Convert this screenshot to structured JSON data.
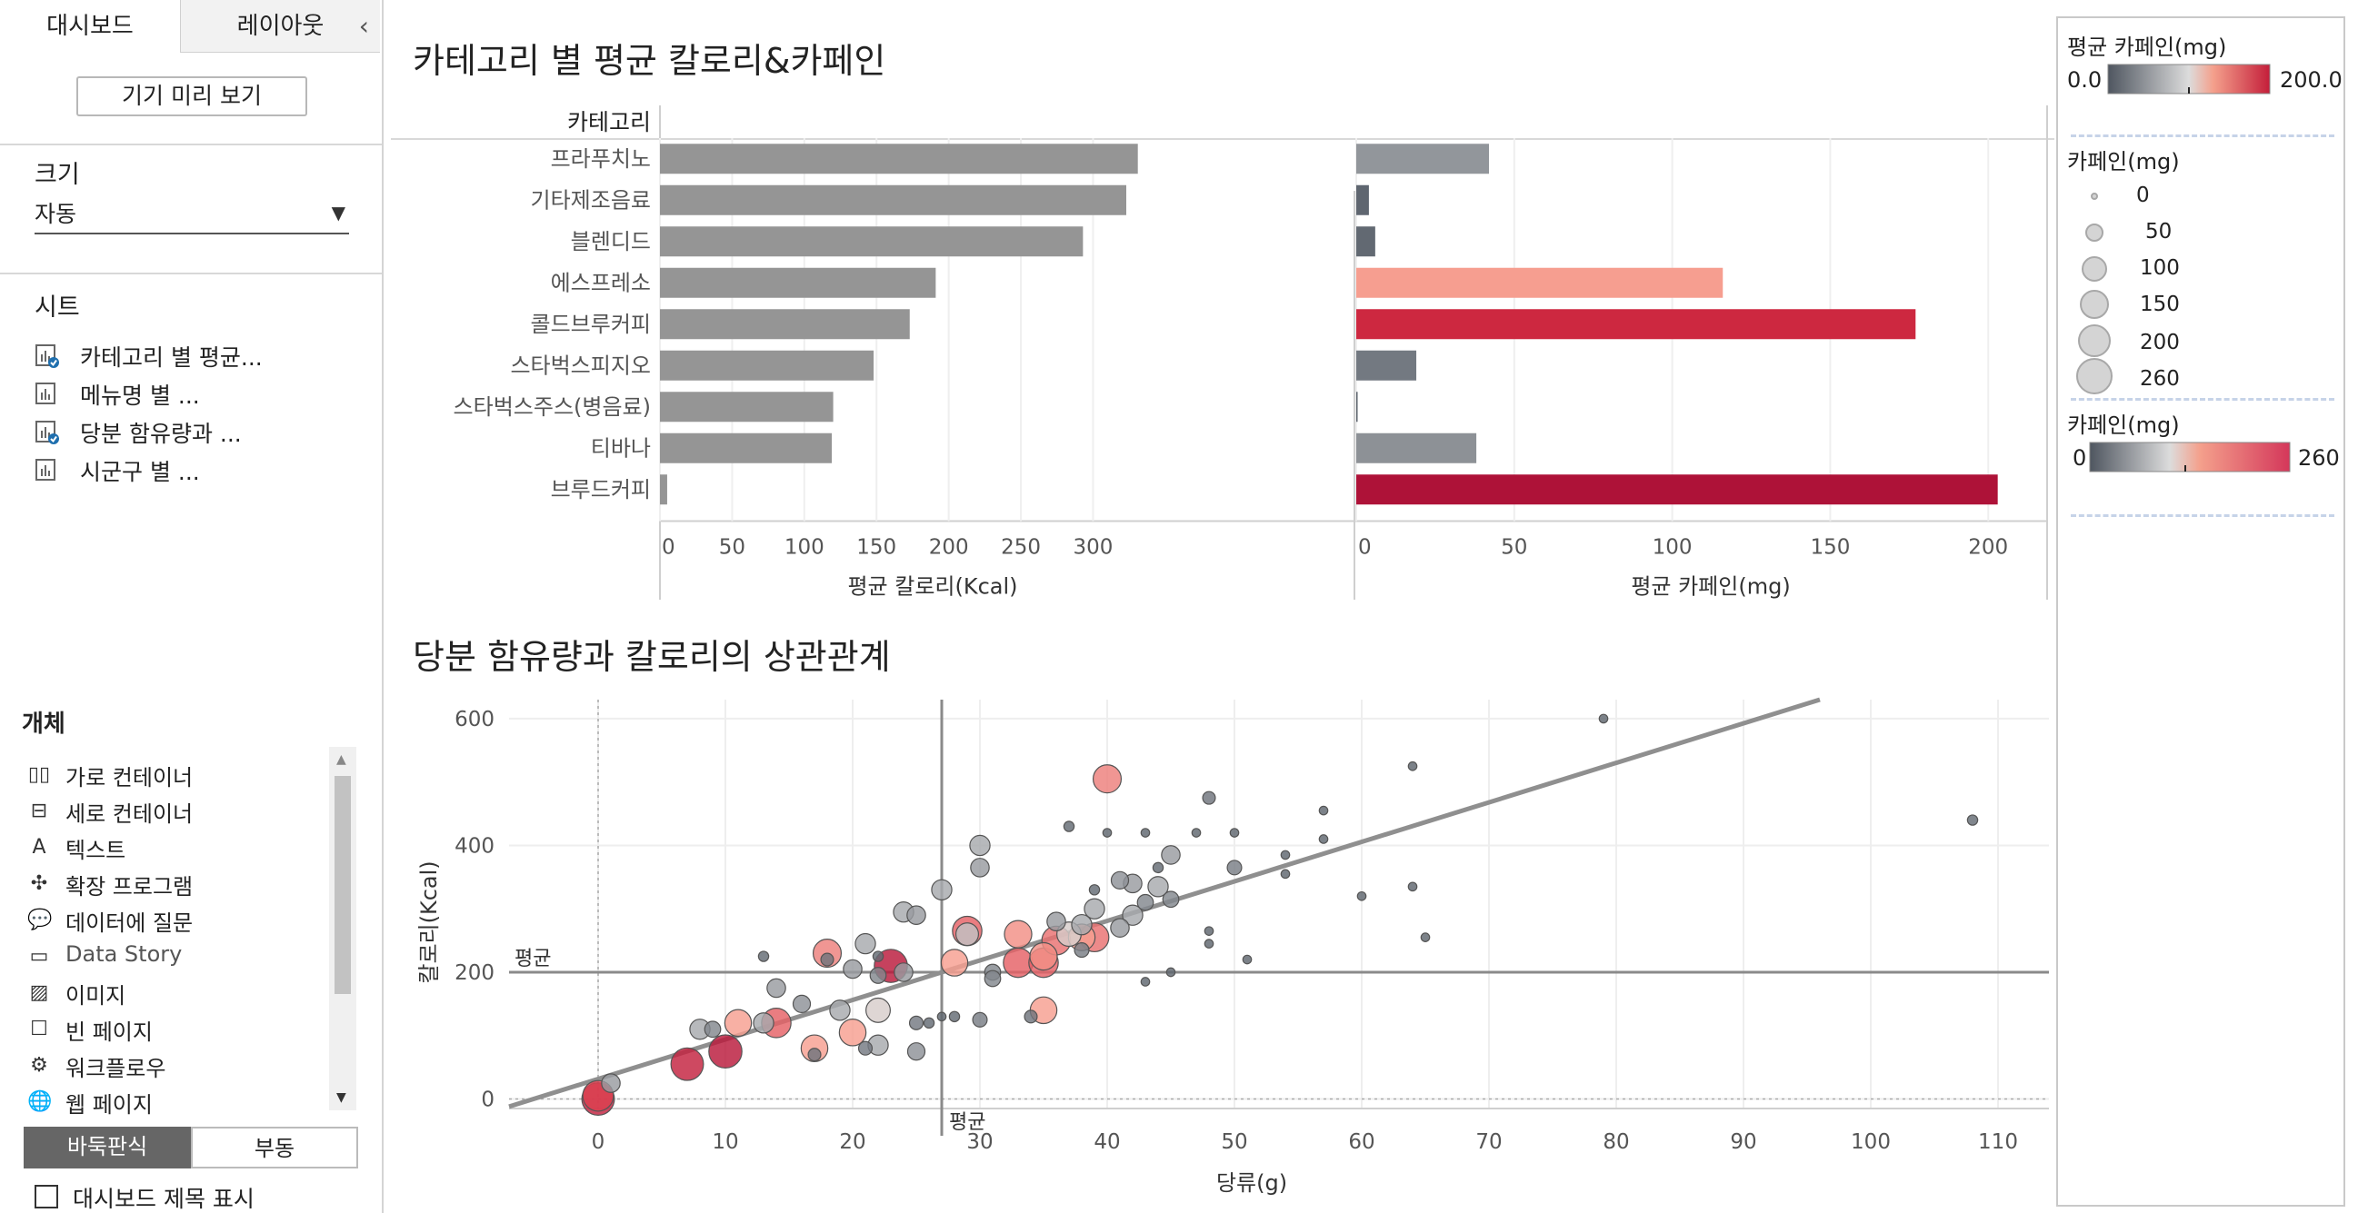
{
  "left_panel": {
    "tabs": [
      "대시보드",
      "레이아웃"
    ],
    "preview_button": "기기 미리 보기",
    "size_section": {
      "title": "크기",
      "value": "자동"
    },
    "sheets_section": {
      "title": "시트",
      "items": [
        {
          "label": "카테고리 별 평균...",
          "used": true
        },
        {
          "label": "메뉴명 별 ...",
          "used": false
        },
        {
          "label": "당분 함유량과 ...",
          "used": true
        },
        {
          "label": "시군구 별 ...",
          "used": false
        }
      ]
    },
    "objects_section": {
      "title": "개체",
      "items": [
        {
          "label": "가로 컨테이너",
          "icon": "horizontal-container-icon"
        },
        {
          "label": "세로 컨테이너",
          "icon": "vertical-container-icon"
        },
        {
          "label": "텍스트",
          "icon": "text-icon"
        },
        {
          "label": "확장 프로그램",
          "icon": "extension-icon"
        },
        {
          "label": "데이터에 질문",
          "icon": "ask-data-icon"
        },
        {
          "label": "Data Story",
          "icon": "data-story-icon"
        },
        {
          "label": "이미지",
          "icon": "image-icon"
        },
        {
          "label": "빈 페이지",
          "icon": "blank-icon"
        },
        {
          "label": "워크플로우",
          "icon": "workflow-icon"
        },
        {
          "label": "웹 페이지",
          "icon": "web-page-icon"
        }
      ]
    },
    "layout_toggle": [
      "바둑판식",
      "부동"
    ],
    "show_title_label": "대시보드 제목 표시"
  },
  "colors": {
    "bar_gray": "#959595",
    "caffeine_low": "#5f6670",
    "caffeine_mid": "#f7a898",
    "caffeine_high": "#b0143c",
    "trend": "#8f8f8f"
  },
  "chart1": {
    "title": "카테고리 별 평균 칼로리&카페인",
    "row_header": "카테고리",
    "categories": [
      "프라푸치노",
      "기타제조음료",
      "블렌디드",
      "에스프레소",
      "콜드브루커피",
      "스타벅스피지오",
      "스타벅스주스(병음료)",
      "티바나",
      "브루드커피"
    ]
  },
  "chart_data": [
    {
      "type": "bar",
      "orientation": "horizontal",
      "categories": [
        "프라푸치노",
        "기타제조음료",
        "블렌디드",
        "에스프레소",
        "콜드브루커피",
        "스타벅스피지오",
        "스타벅스주스(병음료)",
        "티바나",
        "브루드커피"
      ],
      "values": [
        331,
        323,
        293,
        191,
        173,
        148,
        120,
        119,
        5
      ],
      "xlabel": "평균 칼로리(Kcal)",
      "xlim": [
        0,
        340
      ],
      "xticks": [
        0,
        50,
        100,
        150,
        200,
        250,
        300
      ]
    },
    {
      "type": "bar",
      "orientation": "horizontal",
      "categories": [
        "프라푸치노",
        "기타제조음료",
        "블렌디드",
        "에스프레소",
        "콜드브루커피",
        "스타벅스피지오",
        "스타벅스주스(병음료)",
        "티바나",
        "브루드커피"
      ],
      "values": [
        42,
        4,
        6,
        116,
        177,
        19,
        0,
        38,
        203
      ],
      "xlabel": "평균 카페인(mg)",
      "xlim": [
        0,
        210
      ],
      "xticks": [
        0,
        50,
        100,
        150,
        200
      ],
      "color_scale": [
        0,
        200
      ]
    },
    {
      "type": "scatter",
      "title": "당분 함유량과 칼로리의 상관관계",
      "xlabel": "당류(g)",
      "ylabel": "칼로리(Kcal)",
      "xlim": [
        -7,
        114
      ],
      "ylim": [
        -15,
        630
      ],
      "xticks": [
        0,
        10,
        20,
        30,
        40,
        50,
        60,
        70,
        80,
        90,
        100,
        110
      ],
      "yticks": [
        0,
        200,
        400,
        600
      ],
      "avg_label": "평균",
      "avg_x": 27,
      "avg_y": 200,
      "trend": {
        "x0": -7,
        "y0": -12,
        "x1": 96,
        "y1": 630
      },
      "points": [
        {
          "x": 0,
          "y": 0,
          "c": 240
        },
        {
          "x": 0,
          "y": 5,
          "c": 210
        },
        {
          "x": 1,
          "y": 25,
          "c": 60
        },
        {
          "x": 7,
          "y": 55,
          "c": 240
        },
        {
          "x": 8,
          "y": 110,
          "c": 75
        },
        {
          "x": 9,
          "y": 110,
          "c": 40
        },
        {
          "x": 10,
          "y": 75,
          "c": 250
        },
        {
          "x": 11,
          "y": 120,
          "c": 150
        },
        {
          "x": 13,
          "y": 120,
          "c": 75
        },
        {
          "x": 14,
          "y": 175,
          "c": 60
        },
        {
          "x": 13,
          "y": 225,
          "c": 10
        },
        {
          "x": 14,
          "y": 120,
          "c": 190
        },
        {
          "x": 16,
          "y": 150,
          "c": 50
        },
        {
          "x": 17,
          "y": 80,
          "c": 150
        },
        {
          "x": 17,
          "y": 70,
          "c": 20
        },
        {
          "x": 18,
          "y": 230,
          "c": 170
        },
        {
          "x": 18,
          "y": 220,
          "c": 20
        },
        {
          "x": 19,
          "y": 140,
          "c": 75
        },
        {
          "x": 20,
          "y": 105,
          "c": 150
        },
        {
          "x": 20,
          "y": 205,
          "c": 60
        },
        {
          "x": 21,
          "y": 80,
          "c": 25
        },
        {
          "x": 21,
          "y": 245,
          "c": 75
        },
        {
          "x": 22,
          "y": 195,
          "c": 40
        },
        {
          "x": 22,
          "y": 140,
          "c": 120
        },
        {
          "x": 22,
          "y": 85,
          "c": 75
        },
        {
          "x": 22,
          "y": 225,
          "c": 10
        },
        {
          "x": 23,
          "y": 210,
          "c": 250
        },
        {
          "x": 24,
          "y": 200,
          "c": 60
        },
        {
          "x": 24,
          "y": 295,
          "c": 75
        },
        {
          "x": 25,
          "y": 290,
          "c": 60
        },
        {
          "x": 25,
          "y": 120,
          "c": 25
        },
        {
          "x": 25,
          "y": 75,
          "c": 50
        },
        {
          "x": 26,
          "y": 120,
          "c": 10
        },
        {
          "x": 27,
          "y": 330,
          "c": 75
        },
        {
          "x": 27,
          "y": 130,
          "c": 5
        },
        {
          "x": 28,
          "y": 215,
          "c": 150
        },
        {
          "x": 28,
          "y": 130,
          "c": 10
        },
        {
          "x": 29,
          "y": 260,
          "c": 100
        },
        {
          "x": 29,
          "y": 265,
          "c": 190
        },
        {
          "x": 30,
          "y": 125,
          "c": 30
        },
        {
          "x": 30,
          "y": 400,
          "c": 75
        },
        {
          "x": 30,
          "y": 365,
          "c": 60
        },
        {
          "x": 31,
          "y": 200,
          "c": 40
        },
        {
          "x": 31,
          "y": 190,
          "c": 40
        },
        {
          "x": 33,
          "y": 260,
          "c": 160
        },
        {
          "x": 33,
          "y": 215,
          "c": 190
        },
        {
          "x": 34,
          "y": 130,
          "c": 20
        },
        {
          "x": 35,
          "y": 225,
          "c": 160
        },
        {
          "x": 35,
          "y": 215,
          "c": 190
        },
        {
          "x": 35,
          "y": 140,
          "c": 150
        },
        {
          "x": 36,
          "y": 250,
          "c": 180
        },
        {
          "x": 36,
          "y": 280,
          "c": 60
        },
        {
          "x": 37,
          "y": 430,
          "c": 10
        },
        {
          "x": 37,
          "y": 260,
          "c": 120
        },
        {
          "x": 38,
          "y": 235,
          "c": 30
        },
        {
          "x": 38,
          "y": 275,
          "c": 75
        },
        {
          "x": 38,
          "y": 255,
          "c": 150
        },
        {
          "x": 39,
          "y": 300,
          "c": 75
        },
        {
          "x": 39,
          "y": 255,
          "c": 180
        },
        {
          "x": 39,
          "y": 330,
          "c": 10
        },
        {
          "x": 40,
          "y": 505,
          "c": 170
        },
        {
          "x": 40,
          "y": 420,
          "c": 5
        },
        {
          "x": 41,
          "y": 270,
          "c": 60
        },
        {
          "x": 41,
          "y": 345,
          "c": 50
        },
        {
          "x": 42,
          "y": 290,
          "c": 75
        },
        {
          "x": 42,
          "y": 340,
          "c": 60
        },
        {
          "x": 43,
          "y": 310,
          "c": 40
        },
        {
          "x": 43,
          "y": 420,
          "c": 5
        },
        {
          "x": 43,
          "y": 185,
          "c": 5
        },
        {
          "x": 44,
          "y": 365,
          "c": 10
        },
        {
          "x": 44,
          "y": 335,
          "c": 75
        },
        {
          "x": 45,
          "y": 315,
          "c": 40
        },
        {
          "x": 45,
          "y": 200,
          "c": 5
        },
        {
          "x": 45,
          "y": 385,
          "c": 60
        },
        {
          "x": 47,
          "y": 420,
          "c": 5
        },
        {
          "x": 48,
          "y": 475,
          "c": 20
        },
        {
          "x": 48,
          "y": 265,
          "c": 5
        },
        {
          "x": 48,
          "y": 245,
          "c": 5
        },
        {
          "x": 50,
          "y": 365,
          "c": 30
        },
        {
          "x": 50,
          "y": 420,
          "c": 5
        },
        {
          "x": 51,
          "y": 220,
          "c": 5
        },
        {
          "x": 54,
          "y": 385,
          "c": 5
        },
        {
          "x": 54,
          "y": 355,
          "c": 5
        },
        {
          "x": 57,
          "y": 455,
          "c": 5
        },
        {
          "x": 57,
          "y": 410,
          "c": 5
        },
        {
          "x": 60,
          "y": 320,
          "c": 5
        },
        {
          "x": 64,
          "y": 525,
          "c": 5
        },
        {
          "x": 64,
          "y": 335,
          "c": 5
        },
        {
          "x": 65,
          "y": 255,
          "c": 5
        },
        {
          "x": 79,
          "y": 600,
          "c": 5
        },
        {
          "x": 108,
          "y": 440,
          "c": 10
        }
      ]
    }
  ],
  "legend": {
    "color1": {
      "title": "평균 카페인(mg)",
      "min": "0.0",
      "max": "200.0"
    },
    "size": {
      "title": "카페인(mg)",
      "items": [
        "0",
        "50",
        "100",
        "150",
        "200",
        "260"
      ]
    },
    "color2": {
      "title": "카페인(mg)",
      "min": "0",
      "max": "260"
    }
  }
}
